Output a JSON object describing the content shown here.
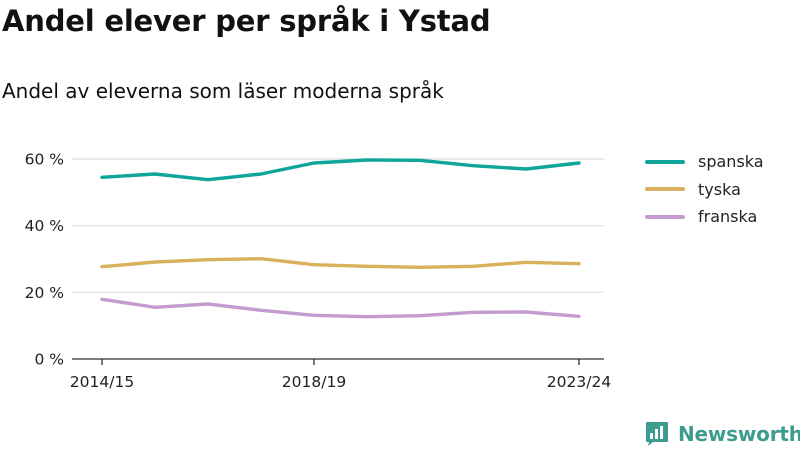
{
  "title": "Andel elever per språk i Ystad",
  "subtitle": "Andel av eleverna som läser moderna språk",
  "brand": {
    "name": "Newsworthy",
    "color": "#3e9b8f",
    "icon": "bar-chart-logo-icon"
  },
  "chart_data": {
    "type": "line",
    "x": [
      "2014/15",
      "2015/16",
      "2016/17",
      "2017/18",
      "2018/19",
      "2019/20",
      "2020/21",
      "2021/22",
      "2022/23",
      "2023/24"
    ],
    "x_tick_labels": [
      "2014/15",
      "2018/19",
      "2023/24"
    ],
    "y_tick_labels": [
      "0 %",
      "20 %",
      "40 %",
      "60 %"
    ],
    "ylim": [
      0,
      70
    ],
    "yticks": [
      0,
      20,
      40,
      60
    ],
    "grid": true,
    "legend_position": "right",
    "series": [
      {
        "name": "spanska",
        "color": "#0ea59a",
        "values": [
          54.5,
          55.5,
          53.8,
          55.5,
          58.8,
          59.7,
          59.6,
          58.0,
          57.0,
          58.8
        ]
      },
      {
        "name": "tyska",
        "color": "#d9b05b",
        "values": [
          27.7,
          29.1,
          29.8,
          30.1,
          28.3,
          27.8,
          27.5,
          27.8,
          29.0,
          28.6
        ]
      },
      {
        "name": "franska",
        "color": "#c39bcf",
        "values": [
          17.9,
          15.5,
          16.5,
          14.6,
          13.1,
          12.7,
          13.0,
          14.0,
          14.1,
          12.8
        ]
      }
    ]
  }
}
